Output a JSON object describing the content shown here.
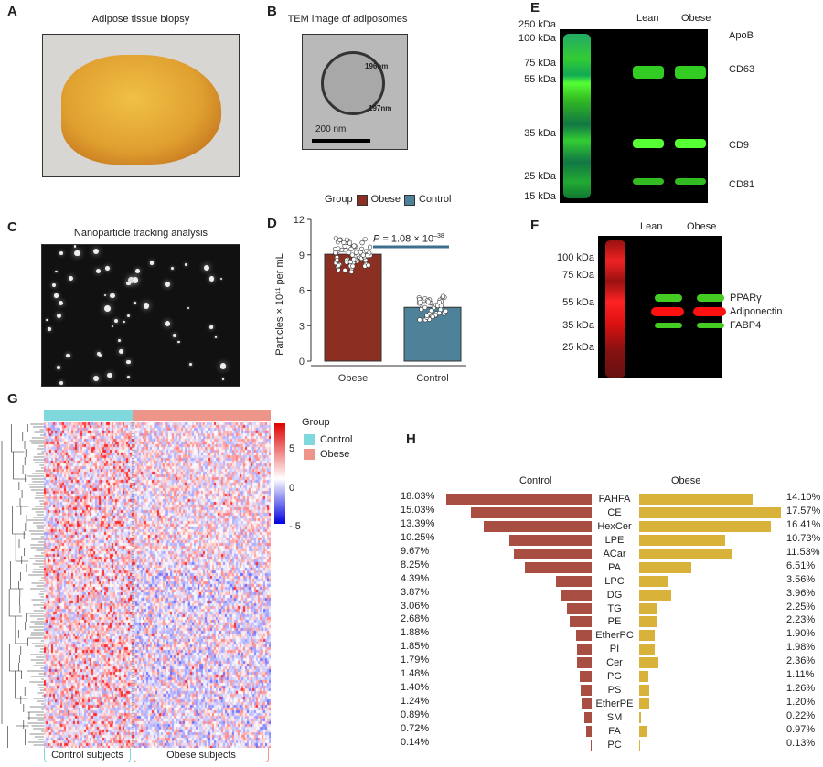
{
  "panels": {
    "A": {
      "label": "A",
      "title": "Adipose tissue biopsy"
    },
    "B": {
      "label": "B",
      "title": "TEM image of adiposomes",
      "meas1": "196nm",
      "meas2": "197nm",
      "scale": "200 nm"
    },
    "C": {
      "label": "C",
      "title": "Nanoparticle tracking analysis"
    },
    "D": {
      "label": "D"
    },
    "E": {
      "label": "E",
      "lanes": [
        "Lean",
        "Obese"
      ],
      "markers": [
        "250 kDa",
        "100 kDa",
        "75 kDa",
        "55 kDa",
        "35 kDa",
        "25 kDa",
        "15 kDa"
      ],
      "bands": [
        "ApoB",
        "CD63",
        "CD9",
        "CD81"
      ]
    },
    "F": {
      "label": "F",
      "lanes": [
        "Lean",
        "Obese"
      ],
      "markers": [
        "100 kDa",
        "75 kDa",
        "55 kDa",
        "35 kDa",
        "25 kDa"
      ],
      "bands": [
        "PPARγ",
        "Adiponectin",
        "FABP4"
      ]
    },
    "G": {
      "label": "G",
      "legend_title": "Group",
      "groups": [
        "Control",
        "Obese"
      ],
      "scale_ticks": [
        "5",
        "0",
        "- 5"
      ],
      "bottom": [
        "Control subjects",
        "Obese subjects"
      ],
      "colors": {
        "control": "#7fd8dc",
        "obese": "#ee958a",
        "high": "#e00000",
        "low": "#0000e0"
      }
    },
    "H": {
      "label": "H"
    }
  },
  "chart_data": [
    {
      "type": "bar",
      "panel": "D",
      "categories": [
        "Obese",
        "Control"
      ],
      "values": [
        9.05,
        4.55
      ],
      "ylabel": "Particles × 10¹¹ per mL",
      "ylim": [
        0,
        12
      ],
      "yticks": [
        "0",
        "3",
        "6",
        "9",
        "12"
      ],
      "legend_title": "Group",
      "legend": [
        "Obese",
        "Control"
      ],
      "colors": {
        "Obese": "#8b2f23",
        "Control": "#4d8299"
      },
      "annotation": {
        "p": "P",
        "eq": " = 1.08 × 10",
        "exp": "–38"
      }
    },
    {
      "type": "bar",
      "panel": "H",
      "orientation": "horizontal-mirrored",
      "categories": [
        "FAHFA",
        "CE",
        "HexCer",
        "LPE",
        "ACar",
        "PA",
        "LPC",
        "DG",
        "TG",
        "PE",
        "EtherPC",
        "PI",
        "Cer",
        "PG",
        "PS",
        "EtherPE",
        "SM",
        "FA",
        "PC"
      ],
      "series": [
        {
          "name": "Control",
          "color": "#a84e42",
          "values": [
            18.03,
            15.03,
            13.39,
            10.25,
            9.67,
            8.25,
            4.39,
            3.87,
            3.06,
            2.68,
            1.88,
            1.85,
            1.79,
            1.48,
            1.4,
            1.24,
            0.89,
            0.72,
            0.14
          ]
        },
        {
          "name": "Obese",
          "color": "#d9b23a",
          "values": [
            14.1,
            17.57,
            16.41,
            10.73,
            11.53,
            6.51,
            3.56,
            3.96,
            2.25,
            2.23,
            1.9,
            1.98,
            2.36,
            1.11,
            1.26,
            1.2,
            0.22,
            0.97,
            0.13
          ]
        }
      ]
    }
  ]
}
